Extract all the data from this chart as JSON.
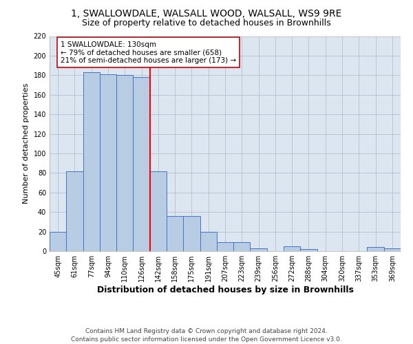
{
  "title1": "1, SWALLOWDALE, WALSALL WOOD, WALSALL, WS9 9RE",
  "title2": "Size of property relative to detached houses in Brownhills",
  "xlabel": "Distribution of detached houses by size in Brownhills",
  "ylabel": "Number of detached properties",
  "categories": [
    "45sqm",
    "61sqm",
    "77sqm",
    "94sqm",
    "110sqm",
    "126sqm",
    "142sqm",
    "158sqm",
    "175sqm",
    "191sqm",
    "207sqm",
    "223sqm",
    "239sqm",
    "256sqm",
    "272sqm",
    "288sqm",
    "304sqm",
    "320sqm",
    "337sqm",
    "353sqm",
    "369sqm"
  ],
  "values": [
    20,
    82,
    183,
    181,
    180,
    178,
    82,
    36,
    36,
    20,
    9,
    9,
    3,
    0,
    5,
    2,
    0,
    0,
    0,
    4,
    3
  ],
  "bar_color": "#b8cce4",
  "bar_edge_color": "#4472c4",
  "vline_color": "#ff0000",
  "annotation_text": "1 SWALLOWDALE: 130sqm\n← 79% of detached houses are smaller (658)\n21% of semi-detached houses are larger (173) →",
  "annotation_box_color": "#ffffff",
  "annotation_box_edge": "#cc0000",
  "ylim": [
    0,
    220
  ],
  "yticks": [
    0,
    20,
    40,
    60,
    80,
    100,
    120,
    140,
    160,
    180,
    200,
    220
  ],
  "bg_color": "#ffffff",
  "plot_bg_color": "#dce6f1",
  "grid_color": "#b0b8c8",
  "title1_fontsize": 10,
  "title2_fontsize": 9,
  "xlabel_fontsize": 9,
  "ylabel_fontsize": 8,
  "tick_fontsize": 7,
  "annot_fontsize": 7.5,
  "footer_fontsize": 6.5,
  "footer_text": "Contains HM Land Registry data © Crown copyright and database right 2024.\nContains public sector information licensed under the Open Government Licence v3.0."
}
